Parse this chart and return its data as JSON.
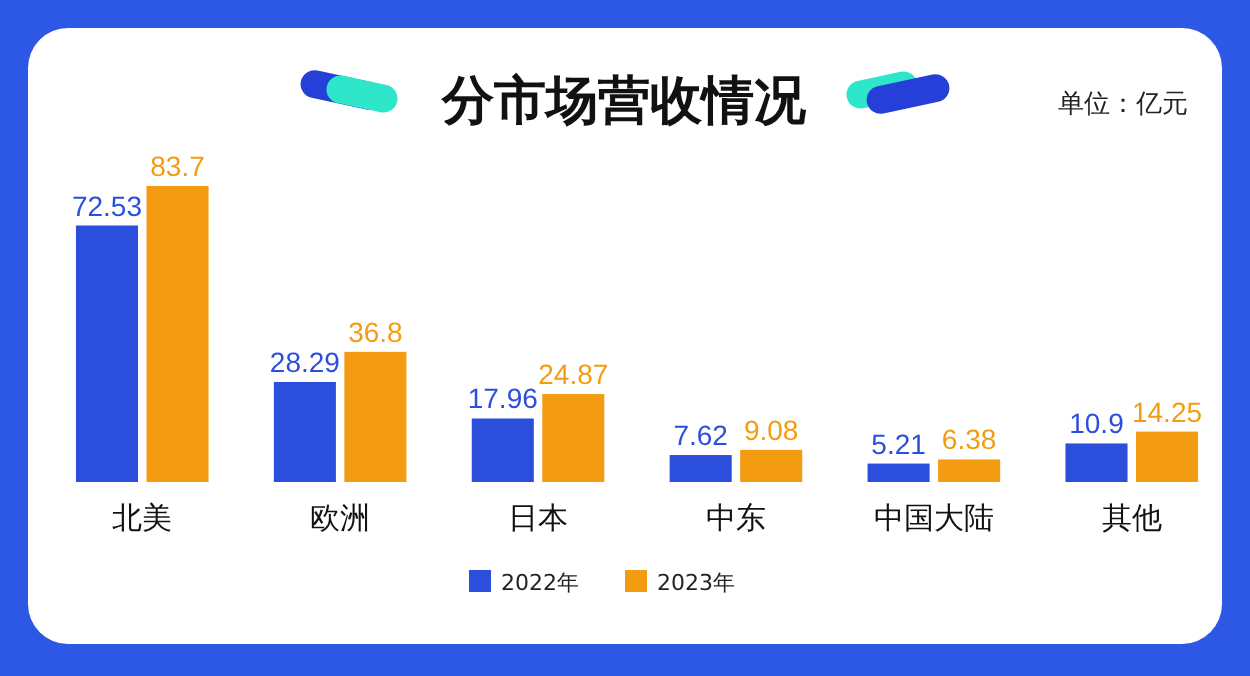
{
  "chart_data": {
    "type": "bar",
    "title": "分市场营收情况",
    "annotations": [
      "单位：亿元"
    ],
    "categories": [
      "北美",
      "欧洲",
      "日本",
      "中东",
      "中国大陆",
      "其他"
    ],
    "series": [
      {
        "name": "2022年",
        "color": "#2b4fdc",
        "values": [
          72.53,
          28.29,
          17.96,
          7.62,
          5.21,
          10.9
        ]
      },
      {
        "name": "2023年",
        "color": "#f39c12",
        "values": [
          83.7,
          36.8,
          24.87,
          9.08,
          6.38,
          14.25
        ]
      }
    ],
    "data_labels": true,
    "legend": "bottom",
    "grid": false
  }
}
